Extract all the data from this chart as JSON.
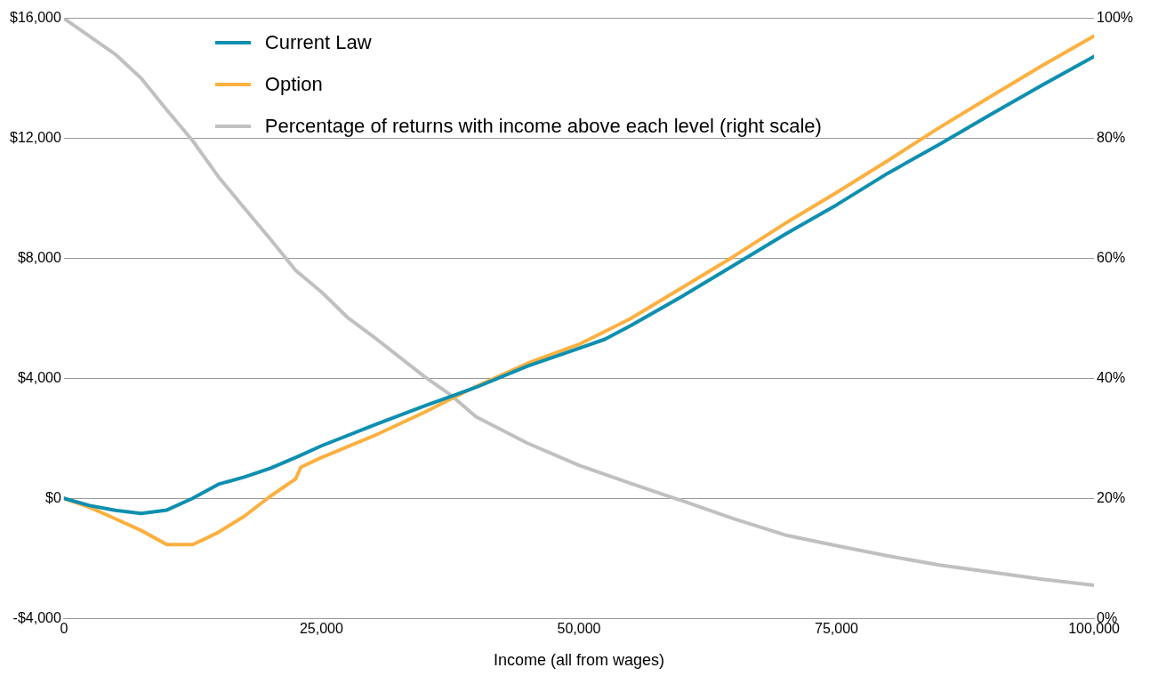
{
  "chart_data": {
    "type": "line",
    "xlabel": "Income (all from wages)",
    "xlim": [
      0,
      100000
    ],
    "xticks": [
      0,
      {
        "value": 25000,
        "label": "25,000"
      },
      {
        "value": 50000,
        "label": "50,000"
      },
      {
        "value": 75000,
        "label": "75,000"
      },
      {
        "value": 100000,
        "label": "100,000"
      }
    ],
    "ylim": [
      -4000,
      16000
    ],
    "yticks": [
      {
        "value": -4000,
        "label": "-$4,000"
      },
      {
        "value": 0,
        "label": "$0"
      },
      {
        "value": 4000,
        "label": "$4,000"
      },
      {
        "value": 8000,
        "label": "$8,000"
      },
      {
        "value": 12000,
        "label": "$12,000"
      },
      {
        "value": 16000,
        "label": "$16,000"
      }
    ],
    "y2lim": [
      0,
      100
    ],
    "y2ticks": [
      {
        "value": 0,
        "label": "0%"
      },
      {
        "value": 20,
        "label": "20%"
      },
      {
        "value": 40,
        "label": "40%"
      },
      {
        "value": 60,
        "label": "60%"
      },
      {
        "value": 80,
        "label": "80%"
      },
      {
        "value": 100,
        "label": "100%"
      }
    ],
    "grid": "y",
    "legend": "top left",
    "marker": "none",
    "line_style": "solid",
    "series": [
      {
        "name": "Current Law",
        "color": "#0e8fb0",
        "x": [
          0,
          2500,
          5000,
          7500,
          10000,
          12500,
          15000,
          17500,
          20000,
          22500,
          25000,
          30000,
          35000,
          40000,
          45000,
          50000,
          52500,
          55000,
          60000,
          65000,
          70000,
          75000,
          80000,
          85000,
          90000,
          95000,
          100000
        ],
        "values": [
          0,
          -240,
          -400,
          -500,
          -390,
          0,
          470,
          710,
          1000,
          1360,
          1750,
          2430,
          3080,
          3700,
          4410,
          5000,
          5300,
          5750,
          6730,
          7760,
          8800,
          9780,
          10840,
          11800,
          12800,
          13780,
          14730
        ]
      },
      {
        "name": "Option",
        "color": "#fbb040",
        "x": [
          0,
          2500,
          5000,
          7500,
          10000,
          12500,
          14000,
          15000,
          17500,
          20000,
          22500,
          23000,
          25000,
          30000,
          35000,
          40000,
          45000,
          50000,
          55000,
          60000,
          65000,
          70000,
          75000,
          80000,
          85000,
          90000,
          95000,
          100000
        ],
        "values": [
          0,
          -300,
          -680,
          -1070,
          -1540,
          -1540,
          -1300,
          -1130,
          -600,
          60,
          650,
          1040,
          1360,
          2070,
          2870,
          3730,
          4500,
          5130,
          5990,
          7020,
          8060,
          9160,
          10190,
          11260,
          12360,
          13400,
          14430,
          15410
        ]
      },
      {
        "name": "Percentage of returns with income above each level (right scale)",
        "color": "#c0c0c0",
        "axis": "y2",
        "x": [
          0,
          2500,
          5000,
          7500,
          10000,
          12500,
          15000,
          17500,
          20000,
          22500,
          25000,
          27500,
          30000,
          35000,
          37500,
          40000,
          45000,
          50000,
          55000,
          60000,
          65000,
          70000,
          75000,
          80000,
          85000,
          90000,
          95000,
          100000
        ],
        "values": [
          100,
          97,
          94,
          90,
          84.7,
          79.6,
          73.6,
          68.4,
          63.3,
          58,
          54.4,
          50.2,
          47,
          40.3,
          37.3,
          33.6,
          29.2,
          25.5,
          22.5,
          19.6,
          16.6,
          13.9,
          12.1,
          10.4,
          8.9,
          7.7,
          6.5,
          5.5
        ]
      }
    ]
  }
}
